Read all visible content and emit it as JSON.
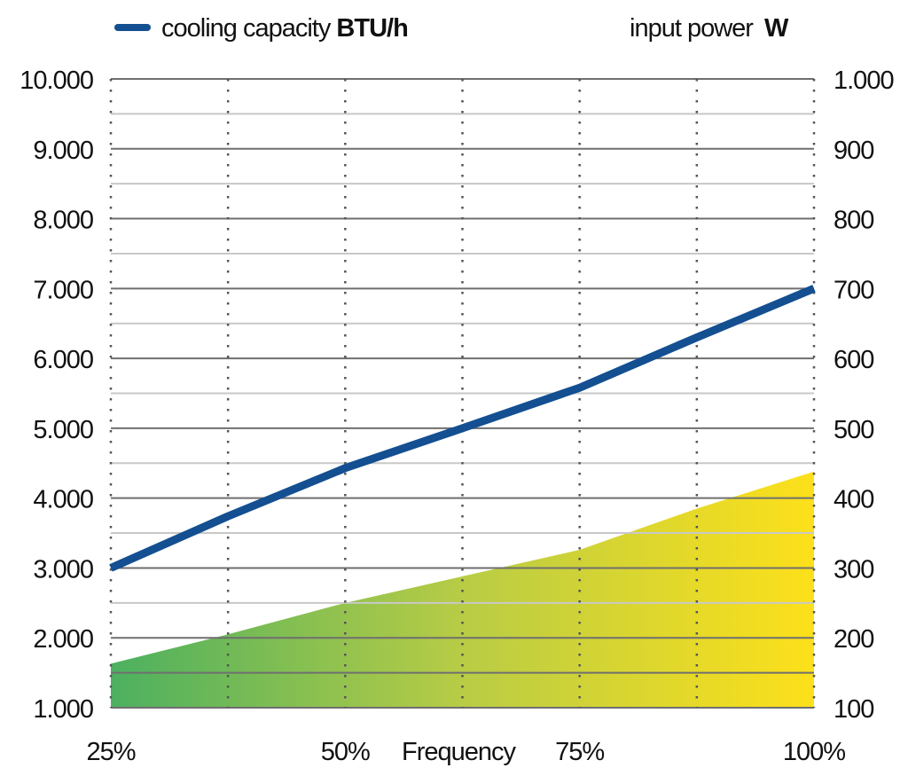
{
  "chart_data": {
    "type": "line+area",
    "title": "",
    "xlabel": "Frequency",
    "x_ticks": [
      "25%",
      "50%",
      "75%",
      "100%"
    ],
    "x": [
      25,
      37.5,
      50,
      62.5,
      75,
      87.5,
      100
    ],
    "xlim": [
      25,
      100
    ],
    "y_left": {
      "ticks": [
        "1.000",
        "2.000",
        "3.000",
        "4.000",
        "5.000",
        "6.000",
        "7.000",
        "8.000",
        "9.000",
        "10.000"
      ],
      "lim": [
        1000,
        10000
      ]
    },
    "y_right": {
      "ticks": [
        "100",
        "200",
        "300",
        "400",
        "500",
        "600",
        "700",
        "800",
        "900",
        "1.000"
      ],
      "lim": [
        100,
        1000
      ]
    },
    "grid": true,
    "legend_position": "top",
    "series": [
      {
        "name": "cooling capacity",
        "unit": "BTU/h",
        "type": "line",
        "axis": "left",
        "color": "#134f91",
        "values": [
          3000,
          3740,
          4430,
          5000,
          5580,
          6300,
          7000
        ]
      },
      {
        "name": "input power",
        "unit": "W",
        "type": "area",
        "axis": "right",
        "color_start": "#4cb060",
        "color_end": "#fde01a",
        "values": [
          163,
          205,
          250,
          288,
          326,
          385,
          438
        ]
      }
    ]
  }
}
